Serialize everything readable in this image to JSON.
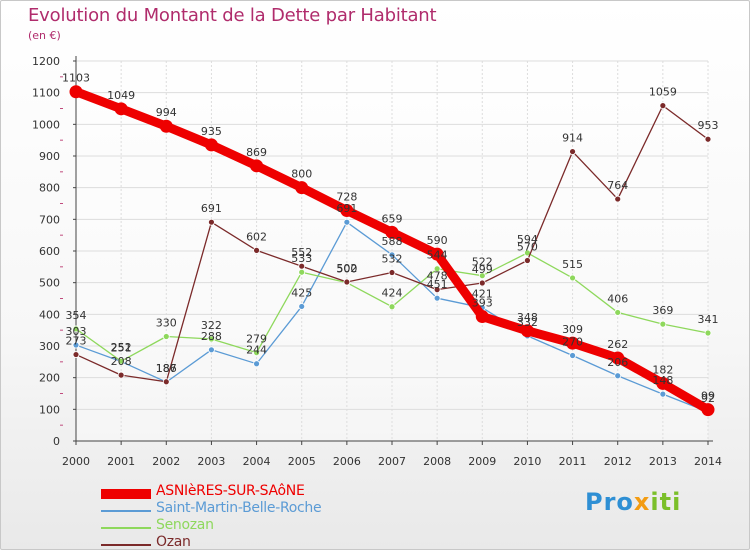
{
  "header": {
    "title": "Evolution du Montant de la Dette par Habitant",
    "subtitle": "(en €)"
  },
  "logo": {
    "text_a": "Pro",
    "text_x": "x",
    "text_b": "iti"
  },
  "chart_data": {
    "type": "line",
    "title": "Evolution du Montant de la Dette par Habitant",
    "subtitle": "(en €)",
    "x": [
      "2000",
      "2001",
      "2002",
      "2003",
      "2004",
      "2005",
      "2006",
      "2007",
      "2008",
      "2009",
      "2010",
      "2011",
      "2012",
      "2013",
      "2014"
    ],
    "ylim": [
      0,
      1200
    ],
    "yticks": [
      0,
      100,
      200,
      300,
      400,
      500,
      600,
      700,
      800,
      900,
      1000,
      1100,
      1200
    ],
    "grid": true,
    "legend_position": "bottom-left",
    "series": [
      {
        "name": "Saint-Martin-Belle-Roche",
        "color": "#5b9bd5",
        "emphasis": false,
        "values": [
          303,
          251,
          186,
          288,
          244,
          425,
          691,
          588,
          451,
          421,
          332,
          270,
          206,
          148,
          92
        ],
        "labels": [
          "303",
          "251",
          "186",
          "288",
          "244",
          "425",
          "691",
          "588",
          "451",
          "421",
          "332",
          "270",
          "206",
          "148",
          "92"
        ]
      },
      {
        "name": "Senozan",
        "color": "#8ed85c",
        "emphasis": false,
        "values": [
          354,
          252,
          330,
          322,
          279,
          533,
          500,
          424,
          544,
          522,
          594,
          515,
          406,
          369,
          341
        ],
        "labels": [
          "354",
          "252",
          "330",
          "322",
          "279",
          "533",
          "500",
          "424",
          "544",
          "522",
          "594",
          "515",
          "406",
          "369",
          "341"
        ]
      },
      {
        "name": "Ozan",
        "color": "#7b2a2a",
        "emphasis": false,
        "values": [
          273,
          208,
          187,
          691,
          602,
          552,
          502,
          532,
          478,
          499,
          570,
          914,
          764,
          1059,
          953
        ],
        "labels": [
          "273",
          "208",
          "187",
          "691",
          "602",
          "552",
          "502",
          "532",
          "478",
          "499",
          "570",
          "914",
          "764",
          "1059",
          "953"
        ]
      },
      {
        "name": "ASNIèRES-SUR-SAôNE",
        "color": "#ee0000",
        "emphasis": true,
        "values": [
          1103,
          1049,
          994,
          935,
          869,
          800,
          728,
          659,
          590,
          393,
          348,
          309,
          262,
          182,
          99
        ],
        "labels": [
          "1103",
          "1049",
          "994",
          "935",
          "869",
          "800",
          "728",
          "659",
          "590",
          "393",
          "348",
          "309",
          "262",
          "182",
          "99"
        ]
      }
    ],
    "legend": [
      {
        "name": "ASNIèRES-SUR-SAôNE",
        "color": "#ee0000"
      },
      {
        "name": "Saint-Martin-Belle-Roche",
        "color": "#5b9bd5"
      },
      {
        "name": "Senozan",
        "color": "#8ed85c"
      },
      {
        "name": "Ozan",
        "color": "#7b2a2a"
      }
    ]
  }
}
